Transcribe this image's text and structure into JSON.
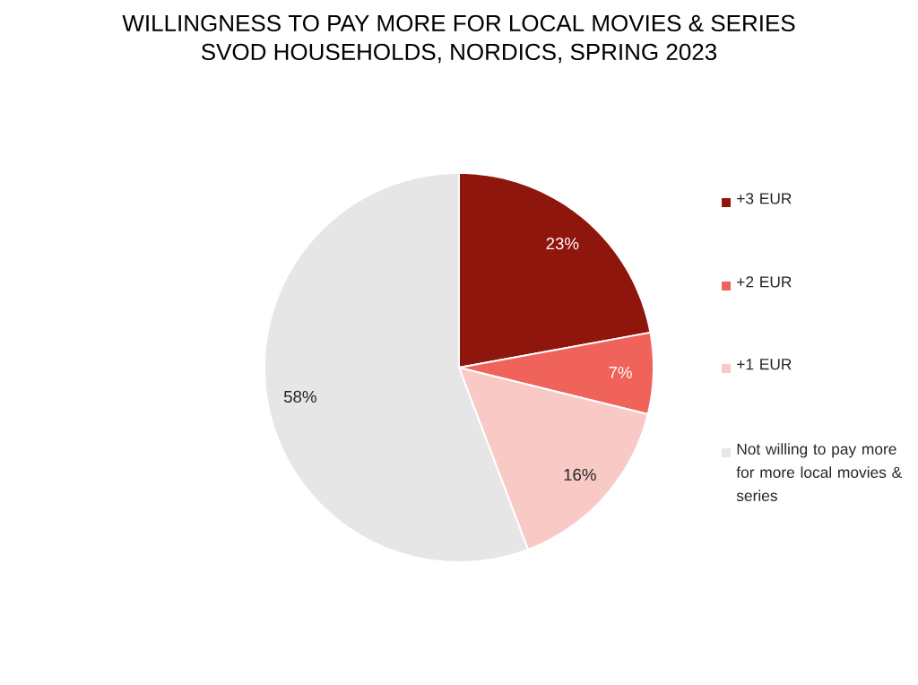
{
  "chart_data": {
    "type": "pie",
    "title": "WILLINGNESS TO PAY MORE FOR LOCAL MOVIES & SERIES",
    "subtitle": "SVOD HOUSEHOLDS, NORDICS, SPRING 2023",
    "categories": [
      "+3 EUR",
      "+2 EUR",
      "+1 EUR",
      "Not willing to pay more for more local movies & series"
    ],
    "values": [
      23,
      7,
      16,
      58
    ],
    "colors": [
      "#8f160c",
      "#f0635a",
      "#f9c9c6",
      "#e6e6e6"
    ],
    "value_labels": [
      "23%",
      "7%",
      "16%",
      "58%"
    ],
    "legend": "right"
  }
}
